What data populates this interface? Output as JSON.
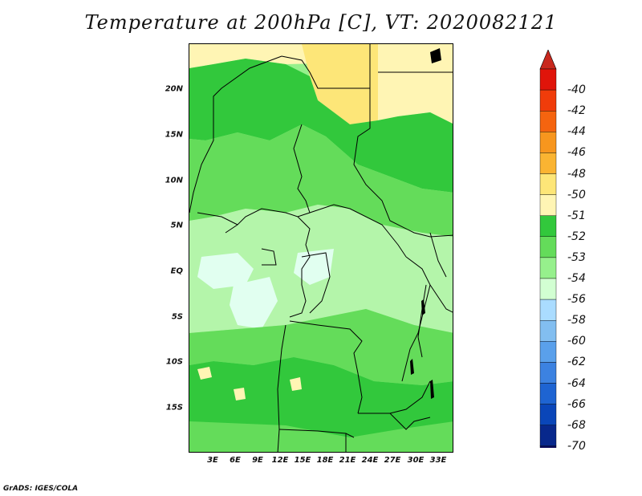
{
  "title": "Temperature at 200hPa [C], VT: 2020082121",
  "credit": "GrADS: IGES/COLA",
  "lat_labels": [
    "20N",
    "15N",
    "10N",
    "5N",
    "EQ",
    "5S",
    "10S",
    "15S"
  ],
  "lon_labels": [
    "3E",
    "6E",
    "9E",
    "12E",
    "15E",
    "18E",
    "21E",
    "24E",
    "27E",
    "30E",
    "33E"
  ],
  "colorbar": {
    "labels": [
      "-40",
      "-42",
      "-44",
      "-46",
      "-48",
      "-50",
      "-51",
      "-52",
      "-53",
      "-54",
      "-56",
      "-58",
      "-60",
      "-62",
      "-64",
      "-66",
      "-68",
      "-70"
    ],
    "colors": [
      "#e0140a",
      "#f03c0a",
      "#f5640f",
      "#f7961e",
      "#fab432",
      "#fde678",
      "#fff5b4",
      "#32c83c",
      "#64dc5a",
      "#96f08c",
      "#d2ffd2",
      "#aadcff",
      "#82bef0",
      "#5aa0eb",
      "#3c82e1",
      "#1e64d2",
      "#0a46b9",
      "#08288c",
      "#0a0a5a"
    ],
    "upper_triangle_color": "#c8281e",
    "lower_triangle_color": "#d2d2f5"
  },
  "map": {
    "field_colors": {
      "warm_yellow": "#fde678",
      "light_yellow": "#fff5b4",
      "green_dark": "#32c83c",
      "green_mid": "#64dc5a",
      "green_light": "#96f08c",
      "green_pale": "#b4f5aa",
      "cyan_pale": "#e1fff0"
    }
  }
}
